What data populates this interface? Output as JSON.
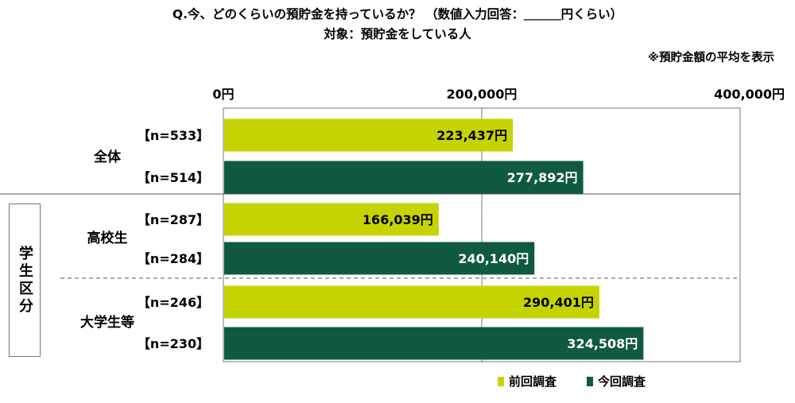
{
  "title_line1": "Q.今、どのくらいの預貯金を持っているか？ （数値入力回答：＿＿＿円くらい）",
  "title_line2": "対象：預貯金をしている人",
  "note": "※預貯金額の平均を表示",
  "side_label": "学生区分",
  "colors": {
    "previous": "#c5d400",
    "current": "#0f5a41"
  },
  "legend": {
    "previous": "前回調査",
    "current": "今回調査"
  },
  "chart_data": {
    "type": "bar",
    "orientation": "horizontal",
    "xlim": [
      0,
      400000
    ],
    "ticks": [
      {
        "value": 0,
        "label": "0円"
      },
      {
        "value": 200000,
        "label": "200,000円"
      },
      {
        "value": 400000,
        "label": "400,000円"
      }
    ],
    "series": [
      {
        "name": "前回調査",
        "values": [
          223437,
          166039,
          290401
        ]
      },
      {
        "name": "今回調査",
        "values": [
          277892,
          240140,
          324508
        ]
      }
    ],
    "groups": [
      {
        "label": "全体",
        "bars": [
          {
            "series": "previous",
            "n_label": "【n=533】",
            "value": 223437,
            "value_label": "223,437円"
          },
          {
            "series": "current",
            "n_label": "【n=514】",
            "value": 277892,
            "value_label": "277,892円"
          }
        ]
      },
      {
        "label": "高校生",
        "bars": [
          {
            "series": "previous",
            "n_label": "【n=287】",
            "value": 166039,
            "value_label": "166,039円"
          },
          {
            "series": "current",
            "n_label": "【n=284】",
            "value": 240140,
            "value_label": "240,140円"
          }
        ]
      },
      {
        "label": "大学生等",
        "bars": [
          {
            "series": "previous",
            "n_label": "【n=246】",
            "value": 290401,
            "value_label": "290,401円"
          },
          {
            "series": "current",
            "n_label": "【n=230】",
            "value": 324508,
            "value_label": "324,508円"
          }
        ]
      }
    ]
  }
}
